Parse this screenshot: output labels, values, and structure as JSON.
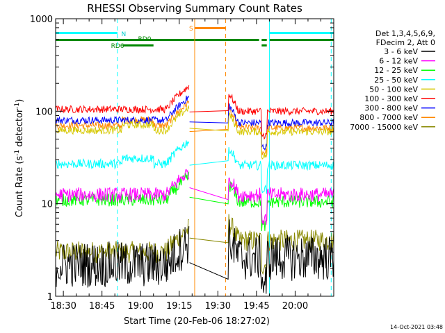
{
  "chart_data": {
    "type": "line",
    "title": "RHESSI Observing Summary Count Rates",
    "xlabel": "Start Time (20-Feb-06 18:27:02)",
    "ylabel_main": "Count Rate (s",
    "ylabel_sup1": "-1",
    "ylabel_mid": " detector",
    "ylabel_sup2": "-1",
    "ylabel_end": ")",
    "yscale": "log",
    "ylim": [
      1,
      1000
    ],
    "xlim_minutes": [
      1107,
      1215
    ],
    "x_ticks": [
      {
        "minutes": 1110,
        "label": "18:30"
      },
      {
        "minutes": 1125,
        "label": "18:45"
      },
      {
        "minutes": 1140,
        "label": "19:00"
      },
      {
        "minutes": 1155,
        "label": "19:15"
      },
      {
        "minutes": 1170,
        "label": "19:30"
      },
      {
        "minutes": 1185,
        "label": "19:45"
      },
      {
        "minutes": 1200,
        "label": "20:00"
      }
    ],
    "y_ticks": [
      {
        "value": 1,
        "label": "1"
      },
      {
        "value": 10,
        "label": "10"
      },
      {
        "value": 100,
        "label": "100"
      },
      {
        "value": 1000,
        "label": "1000"
      }
    ],
    "legend_header": [
      "Det 1,3,4,5,6,9,",
      "FDecim 2, Att 0"
    ],
    "legend_position": "right",
    "series": [
      {
        "name": "3 - 6 keV",
        "color": "#000000",
        "base": 2.2,
        "noise": 0.25,
        "after": 2.6
      },
      {
        "name": "6 - 12 keV",
        "color": "#ff00ff",
        "base": 12.5,
        "noise": 0.08,
        "after": 12.5
      },
      {
        "name": "12 - 25 keV",
        "color": "#00ff00",
        "base": 11,
        "noise": 0.07,
        "after": 10.5
      },
      {
        "name": "25 - 50 keV",
        "color": "#00ffff",
        "base": 27,
        "noise": 0.05,
        "after": 26
      },
      {
        "name": "50 - 100 keV",
        "color": "#d6c800",
        "base": 62,
        "noise": 0.04,
        "after": 60
      },
      {
        "name": "100 - 300 keV",
        "color": "#ff0000",
        "base": 105,
        "noise": 0.04,
        "after": 100
      },
      {
        "name": "300 - 800 keV",
        "color": "#0000ff",
        "base": 80,
        "noise": 0.04,
        "after": 75
      },
      {
        "name": "800 - 7000 keV",
        "color": "#ff8800",
        "base": 70,
        "noise": 0.04,
        "after": 66
      },
      {
        "name": "7000 - 15000 keV",
        "color": "#888800",
        "base": 3.0,
        "noise": 0.12,
        "after": 4.0
      }
    ],
    "flag_labels": {
      "saa": "S",
      "night": "N",
      "rd0": "RD0",
      "rd6": "RD6"
    },
    "night_bars_minutes": [
      [
        1107,
        1131
      ],
      [
        1190,
        1215
      ]
    ],
    "saa_bar_minutes": [
      1161,
      1173
    ],
    "rd0_bars_minutes": [
      [
        1107,
        1186
      ],
      [
        1187,
        1189
      ],
      [
        1190,
        1215
      ]
    ],
    "rd6_bar_minutes": [
      1133,
      1145
    ],
    "attenuator_bar_minutes": [
      1187,
      1189
    ],
    "data_gap_minutes": [
      1159,
      1174
    ],
    "vertical_lines": [
      {
        "minutes": 1107,
        "color": "#00ffff",
        "style": "solid"
      },
      {
        "minutes": 1131,
        "color": "#00ffff",
        "style": "dashed"
      },
      {
        "minutes": 1161,
        "color": "#ff8800",
        "style": "solid"
      },
      {
        "minutes": 1173,
        "color": "#ff8800",
        "style": "dashed"
      },
      {
        "minutes": 1190,
        "color": "#00ffff",
        "style": "solid"
      },
      {
        "minutes": 1214,
        "color": "#00ffff",
        "style": "dashed"
      }
    ],
    "timestamp": "14-Oct-2021 03:48"
  }
}
